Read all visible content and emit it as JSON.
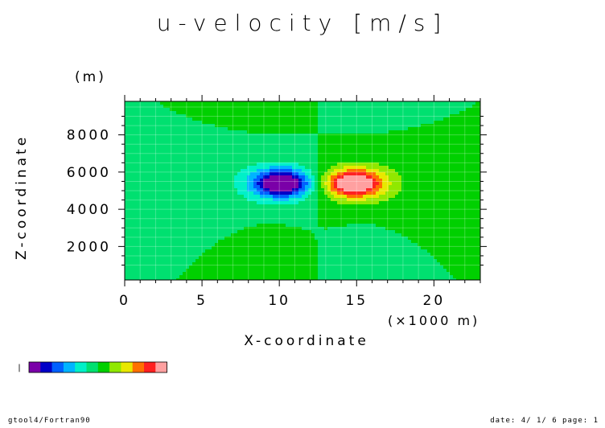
{
  "chart_data": {
    "type": "heatmap",
    "title": "u-velocity [m/s]",
    "xlabel": "X-coordinate",
    "xunit": "(×1000 m)",
    "ylabel": "Z-coordinate",
    "yunit": "(m)",
    "xlim": [
      0,
      23
    ],
    "ylim": [
      200,
      9800
    ],
    "xticks": [
      0,
      5,
      10,
      15,
      20
    ],
    "yticks": [
      2000,
      4000,
      6000,
      8000
    ],
    "levels": 12,
    "value_range": [
      -1,
      1
    ],
    "palette": [
      "#7a00a8",
      "#0000c8",
      "#0060ff",
      "#00b4ff",
      "#00f0c8",
      "#00e070",
      "#00d000",
      "#90e800",
      "#e8e800",
      "#ff7000",
      "#ff2020",
      "#ffa0a0"
    ],
    "features": [
      {
        "kind": "min",
        "x": 10.2,
        "z": 5400,
        "sx": 1.8,
        "sz": 700,
        "amp": -1.0
      },
      {
        "kind": "max",
        "x": 14.8,
        "z": 5400,
        "sx": 1.8,
        "sz": 700,
        "amp": 1.0
      },
      {
        "kind": "min",
        "x": 10.2,
        "z": 5400,
        "sx": 3.6,
        "sz": 1500,
        "amp": -0.26
      },
      {
        "kind": "max",
        "x": 14.8,
        "z": 5400,
        "sx": 3.6,
        "sz": 1500,
        "amp": 0.26
      },
      {
        "kind": "max",
        "x": 9.5,
        "z": 1000,
        "sx": 1.6,
        "sz": 1700,
        "amp": 0.14
      },
      {
        "kind": "min",
        "x": 15.3,
        "z": 1000,
        "sx": 1.6,
        "sz": 1700,
        "amp": -0.14
      },
      {
        "kind": "max",
        "x": 10.0,
        "z": 9800,
        "sx": 2.2,
        "sz": 1100,
        "amp": 0.13
      },
      {
        "kind": "min",
        "x": 15.0,
        "z": 9800,
        "sx": 2.2,
        "sz": 1100,
        "amp": -0.13
      }
    ],
    "grid": true,
    "legend": "bottom-left"
  },
  "footer": {
    "left": "gtool4/Fortran90",
    "right": "date: 4/ 1/ 6 page: 1"
  },
  "legend_tick": "|"
}
